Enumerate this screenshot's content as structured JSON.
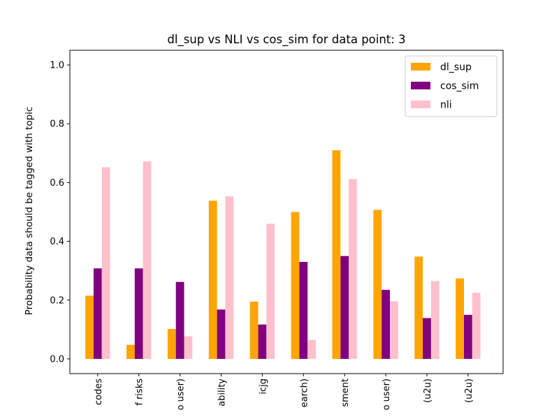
{
  "chart_data": {
    "type": "bar",
    "title": "dl_sup vs NLI vs cos_sim for data point: 3",
    "xlabel": "",
    "ylabel": "Probability data should be tagged with topic",
    "ylim": [
      -0.05,
      1.05
    ],
    "yticks": [
      "0.0",
      "0.2",
      "0.4",
      "0.6",
      "0.8",
      "1.0"
    ],
    "categories": [
      "codes",
      "f risks",
      "o user)",
      "ability",
      "icjg",
      "earch)",
      "sment",
      "o user)",
      "(u2u)",
      "(u2u)"
    ],
    "series": [
      {
        "name": "dl_sup",
        "color": "#ffa500",
        "values": [
          0.215,
          0.048,
          0.102,
          0.538,
          0.195,
          0.5,
          0.71,
          0.507,
          0.348,
          0.274
        ]
      },
      {
        "name": "cos_sim",
        "color": "#800080",
        "values": [
          0.308,
          0.308,
          0.262,
          0.168,
          0.117,
          0.33,
          0.35,
          0.235,
          0.139,
          0.15
        ]
      },
      {
        "name": "nli",
        "color": "#ffc0cb",
        "values": [
          0.652,
          0.672,
          0.077,
          0.553,
          0.46,
          0.065,
          0.612,
          0.196,
          0.265,
          0.225
        ]
      }
    ],
    "legend_position": "top-right",
    "grid": false
  }
}
